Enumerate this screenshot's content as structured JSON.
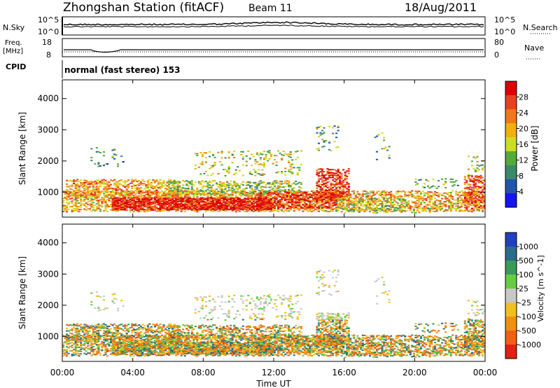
{
  "header": {
    "station": "Zhongshan Station (fitACF)",
    "beam": "Beam 11",
    "date": "18/Aug/2011"
  },
  "noise_panel": {
    "left_label": "N.Sky",
    "right_label": "N.Search",
    "left_ticks": [
      "10^5",
      "10^0"
    ],
    "right_ticks": [
      "10^5",
      "10^0"
    ]
  },
  "freq_panel": {
    "left_label_1": "Freq.",
    "left_label_2": "[MHz]",
    "right_label": "Nave",
    "left_ticks": [
      "18",
      "8"
    ],
    "right_ticks": [
      "80",
      "0"
    ]
  },
  "cpid": {
    "label": "CPID",
    "mode": "normal (fast stereo) 153"
  },
  "chart_data": [
    {
      "type": "heatmap",
      "name": "power",
      "ylabel": "Slant Range [km]",
      "ylim": [
        200,
        4600
      ],
      "yticks": [
        "1000",
        "2000",
        "3000",
        "4000"
      ],
      "colorbar_label": "Power [dB]",
      "colorbar_ticks": [
        "4",
        "8",
        "12",
        "16",
        "20",
        "24",
        "28"
      ],
      "colorscale": [
        "#1515ee",
        "#2255aa",
        "#3a8a6a",
        "#55aa3a",
        "#ccdd22",
        "#f0b010",
        "#f07818",
        "#e84020",
        "#dd0000"
      ]
    },
    {
      "type": "heatmap",
      "name": "velocity",
      "ylabel": "Slant Range [km]",
      "ylim": [
        200,
        4600
      ],
      "yticks": [
        "1000",
        "2000",
        "3000",
        "4000"
      ],
      "colorbar_label": "Velocity [m s^-1]",
      "colorbar_ticks": [
        "1000",
        "500",
        "100",
        "25",
        "-25",
        "-100",
        "-500",
        "-1000"
      ],
      "colorscale": [
        "#2040c0",
        "#2a6a8a",
        "#3a9a5a",
        "#66cc44",
        "#c8c8c8",
        "#f0c020",
        "#f09010",
        "#f06010",
        "#e02010"
      ]
    }
  ],
  "xaxis": {
    "label": "Time UT",
    "ticks": [
      "00:00",
      "04:00",
      "08:00",
      "12:00",
      "16:00",
      "20:00",
      "00:00"
    ]
  }
}
